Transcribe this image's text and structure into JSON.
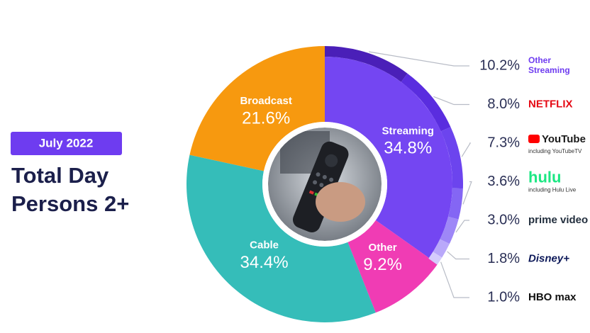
{
  "header": {
    "badge": "July 2022",
    "title_lines": [
      "Total Day",
      "Persons 2+"
    ]
  },
  "chart_data": [
    {
      "type": "pie",
      "categories": [
        "Streaming",
        "Other",
        "Cable",
        "Broadcast"
      ],
      "values": [
        34.8,
        9.2,
        34.4,
        21.6
      ],
      "value_labels": [
        "34.8%",
        "9.2%",
        "34.4%",
        "21.6%"
      ],
      "colors": [
        "#7446f2",
        "#f03cb4",
        "#35bdb9",
        "#f7990f"
      ]
    },
    {
      "type": "ring",
      "categories": [
        "Other Streaming",
        "NETFLIX",
        "YouTube",
        "hulu",
        "prime video",
        "Disney+",
        "HBO max"
      ],
      "sublabels": [
        null,
        null,
        "including YouTubeTV",
        "including Hulu Live",
        null,
        null,
        null
      ],
      "values": [
        10.2,
        8.0,
        7.3,
        3.6,
        3.0,
        1.8,
        1.0
      ],
      "value_labels": [
        "10.2%",
        "8.0%",
        "7.3%",
        "3.6%",
        "3.0%",
        "1.8%",
        "1.0%"
      ],
      "colors": [
        "#4a1fb8",
        "#5a2ddf",
        "#6c44ee",
        "#8466f4",
        "#9e87f7",
        "#b9a8fa",
        "#d5cbfc"
      ],
      "label_colors": [
        "#6e3cf0",
        "#e50914",
        "#1a1a1a",
        "#1ce783",
        "#232f3e",
        "#0e1a5a",
        "#111111"
      ]
    }
  ]
}
